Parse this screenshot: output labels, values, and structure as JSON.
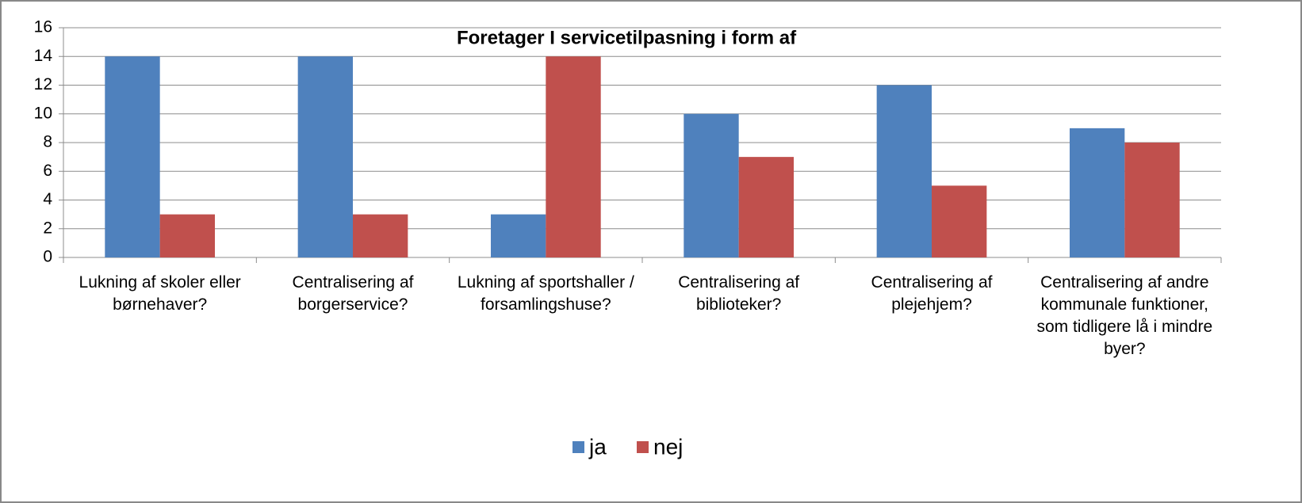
{
  "chart_data": {
    "type": "bar",
    "title": "Foretager I servicetilpasning i form af",
    "categories": [
      "Lukning af skoler eller børnehaver?",
      "Centralisering af borgerservice?",
      "Lukning af sportshaller / forsamlingshuse?",
      "Centralisering af biblioteker?",
      "Centralisering af plejehjem?",
      "Centralisering af andre kommunale funktioner, som tidligere lå i mindre byer?"
    ],
    "series": [
      {
        "name": "ja",
        "color": "#4f81bd",
        "values": [
          14,
          14,
          3,
          10,
          12,
          9
        ]
      },
      {
        "name": "nej",
        "color": "#c0504d",
        "values": [
          3,
          3,
          14,
          7,
          5,
          8
        ]
      }
    ],
    "ylim": [
      0,
      16
    ],
    "yticks": [
      0,
      2,
      4,
      6,
      8,
      10,
      12,
      14,
      16
    ],
    "grid": true,
    "legend": "bottom"
  }
}
